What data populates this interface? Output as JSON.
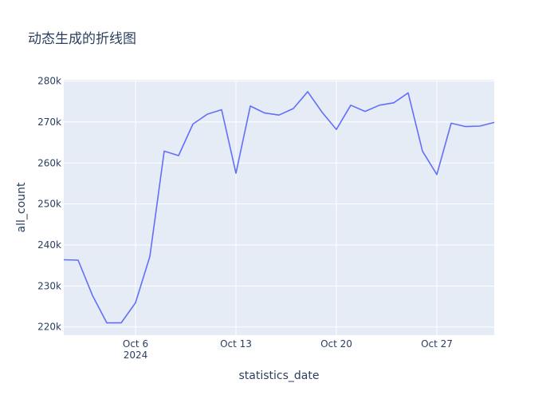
{
  "chart_data": {
    "type": "line",
    "title": "动态生成的折线图",
    "xlabel": "statistics_date",
    "ylabel": "all_count",
    "x_tick_labels": [
      {
        "date": "2024-10-06",
        "label": "Oct 6",
        "sublabel": "2024"
      },
      {
        "date": "2024-10-13",
        "label": "Oct 13"
      },
      {
        "date": "2024-10-20",
        "label": "Oct 20"
      },
      {
        "date": "2024-10-27",
        "label": "Oct 27"
      }
    ],
    "y_ticks": [
      220000,
      230000,
      240000,
      250000,
      260000,
      270000,
      280000
    ],
    "y_tick_labels": [
      "220k",
      "230k",
      "240k",
      "250k",
      "260k",
      "270k",
      "280k"
    ],
    "xlim": [
      "2024-10-01",
      "2024-10-31"
    ],
    "ylim": [
      218000,
      280300
    ],
    "grid": true,
    "colors": {
      "line": "#636efa",
      "plot_bg": "#e5ecf6",
      "grid": "#ffffff",
      "text": "#2a3f5f"
    },
    "series": [
      {
        "x": [
          "2024-10-01",
          "2024-10-02",
          "2024-10-03",
          "2024-10-04",
          "2024-10-05",
          "2024-10-06",
          "2024-10-07",
          "2024-10-08",
          "2024-10-09",
          "2024-10-10",
          "2024-10-11",
          "2024-10-12",
          "2024-10-13",
          "2024-10-14",
          "2024-10-15",
          "2024-10-16",
          "2024-10-17",
          "2024-10-18",
          "2024-10-19",
          "2024-10-20",
          "2024-10-21",
          "2024-10-22",
          "2024-10-23",
          "2024-10-24",
          "2024-10-25",
          "2024-10-26",
          "2024-10-27",
          "2024-10-28",
          "2024-10-29",
          "2024-10-30",
          "2024-10-31"
        ],
        "y": [
          236400,
          236300,
          227700,
          221000,
          221000,
          225900,
          237200,
          262900,
          261800,
          269500,
          271900,
          273000,
          257500,
          273900,
          272200,
          271700,
          273300,
          277400,
          272400,
          268200,
          274100,
          272600,
          274100,
          274700,
          277100,
          262900,
          257200,
          269700,
          268900,
          269000,
          269900
        ]
      }
    ]
  }
}
